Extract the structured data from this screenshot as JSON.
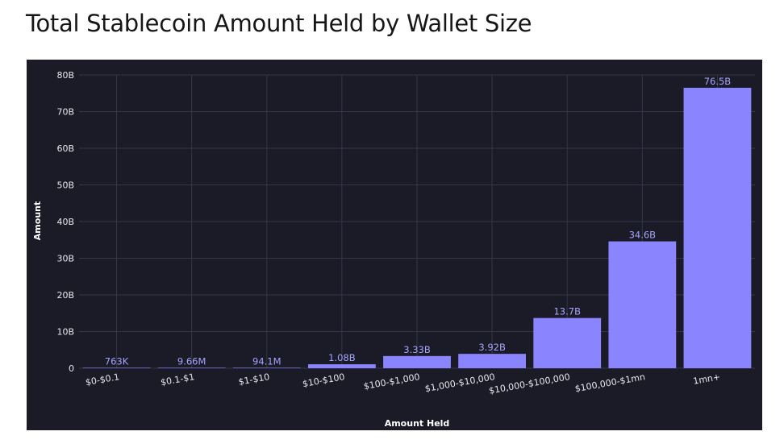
{
  "chart_data": {
    "type": "bar",
    "title": "Total Stablecoin Amount Held by Wallet Size",
    "xlabel": "Amount Held",
    "ylabel": "Amount",
    "categories": [
      "$0-$0.1",
      "$0.1-$1",
      "$1-$10",
      "$10-$100",
      "$100-$1,000",
      "$1,000-$10,000",
      "$10,000-$100,000",
      "$100,000-$1mn",
      "1mn+"
    ],
    "values": [
      0.000763,
      0.00966,
      0.0941,
      1.08,
      3.33,
      3.92,
      13.7,
      34.6,
      76.5
    ],
    "value_labels": [
      "763K",
      "9.66M",
      "94.1M",
      "1.08B",
      "3.33B",
      "3.92B",
      "13.7B",
      "34.6B",
      "76.5B"
    ],
    "ylim": [
      0,
      80
    ],
    "yticks": [
      0,
      10,
      20,
      30,
      40,
      50,
      60,
      70,
      80
    ],
    "ytick_labels": [
      "0",
      "10B",
      "20B",
      "30B",
      "40B",
      "50B",
      "60B",
      "70B",
      "80B"
    ],
    "grid": true,
    "colors": {
      "bar": "#8b84ff",
      "value_label": "#a6a4ff",
      "background": "#1a1b26",
      "grid": "#34364a"
    }
  }
}
